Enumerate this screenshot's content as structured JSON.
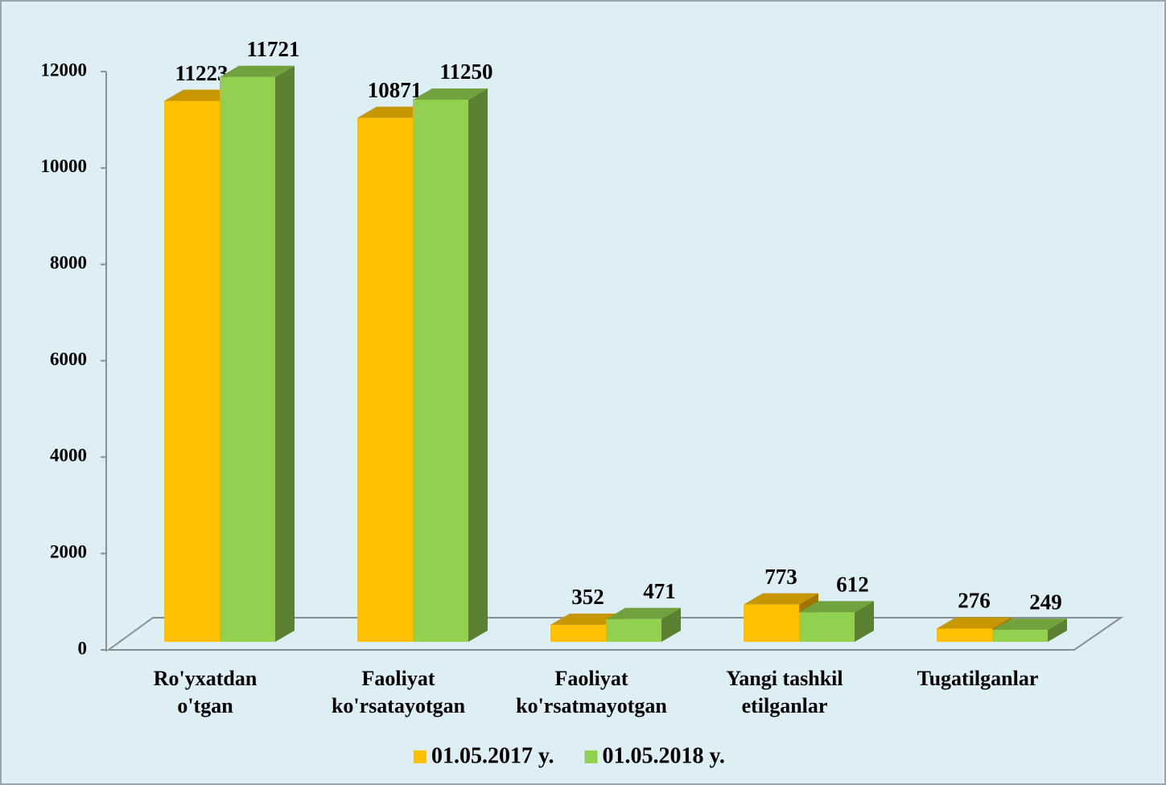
{
  "chart_data": {
    "type": "bar3d",
    "categories": [
      [
        "Ro'yxatdan",
        "o'tgan"
      ],
      [
        "Faoliyat",
        "ko'rsatayotgan"
      ],
      [
        "Faoliyat",
        "ko'rsatmayotgan"
      ],
      [
        "Yangi tashkil",
        "etilganlar"
      ],
      [
        "Tugatilganlar"
      ]
    ],
    "series": [
      {
        "name": "01.05.2017 y.",
        "color": "#FFC000",
        "values": [
          11223,
          10871,
          352,
          773,
          276
        ]
      },
      {
        "name": "01.05.2018 y.",
        "color": "#92D050",
        "values": [
          11721,
          11250,
          471,
          612,
          249
        ]
      }
    ],
    "ylim": [
      0,
      12000
    ],
    "yticks": [
      0,
      2000,
      4000,
      6000,
      8000,
      10000,
      12000
    ],
    "legend": "bottom"
  }
}
